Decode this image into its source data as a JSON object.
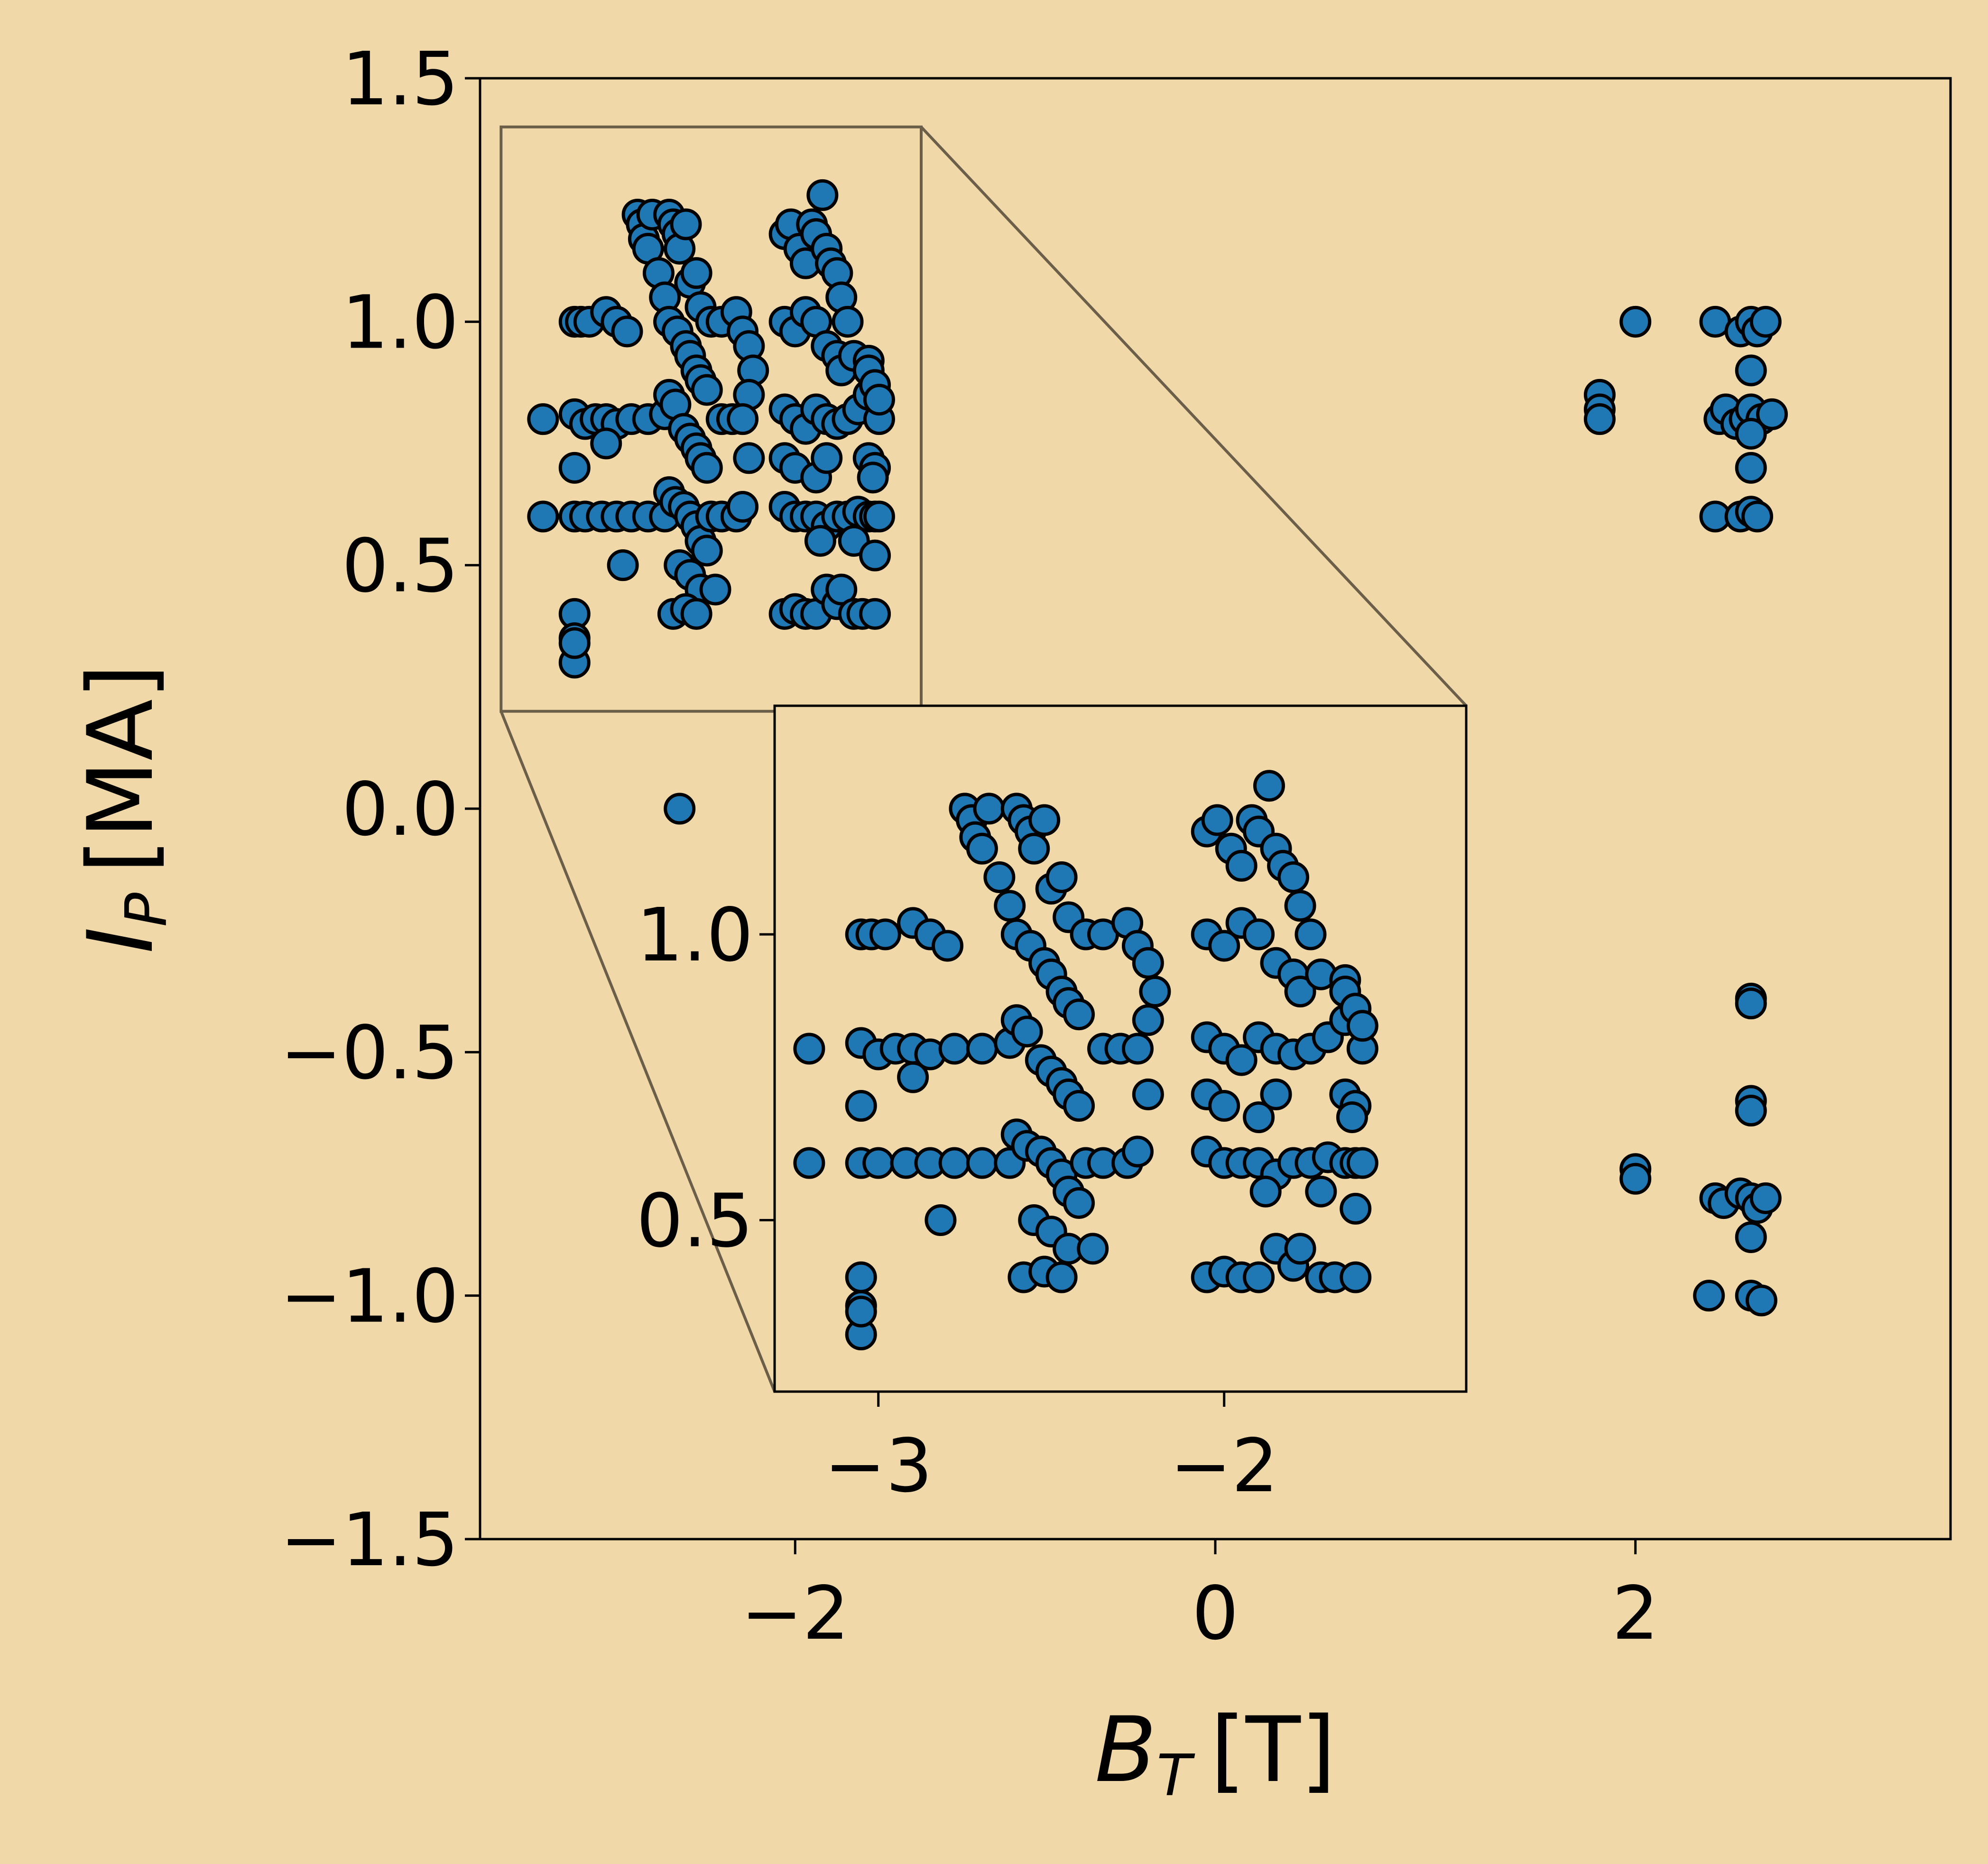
{
  "colors": {
    "background": "#f0d8a8",
    "marker_fill": "#1f77b4",
    "marker_edge": "#000000",
    "zoom_box": "#6b5f4a"
  },
  "chart_data": [
    {
      "type": "scatter",
      "role": "main",
      "xlabel": {
        "base": "B",
        "sub": "T",
        "unit": "[T]"
      },
      "ylabel": {
        "base": "I",
        "sub": "P",
        "unit": "[MA]"
      },
      "xlim": [
        -3.5,
        3.5
      ],
      "ylim": [
        -1.5,
        1.5
      ],
      "xticks": [
        -2,
        0,
        2
      ],
      "xtick_labels": [
        "−2",
        "0",
        "2"
      ],
      "yticks": [
        1.5,
        1.0,
        0.5,
        0.0,
        -0.5,
        -1.0,
        -1.5
      ],
      "ytick_labels": [
        "1.5",
        "1.0",
        "0.5",
        "0.0",
        "−0.5",
        "−1.0",
        "−1.5"
      ],
      "grid": false,
      "legend": "none",
      "zoom_region": {
        "x": [
          -3.4,
          -1.4
        ],
        "y": [
          0.2,
          1.4
        ]
      },
      "points": [
        [
          -3.2,
          0.8
        ],
        [
          -3.2,
          0.6
        ],
        [
          -3.05,
          1.0
        ],
        [
          -3.02,
          1.0
        ],
        [
          -2.98,
          1.0
        ],
        [
          -2.9,
          1.02
        ],
        [
          -2.85,
          1.0
        ],
        [
          -2.8,
          0.98
        ],
        [
          -3.05,
          0.81
        ],
        [
          -3.0,
          0.79
        ],
        [
          -2.95,
          0.8
        ],
        [
          -2.9,
          0.8
        ],
        [
          -2.85,
          0.79
        ],
        [
          -2.78,
          0.8
        ],
        [
          -2.7,
          0.8
        ],
        [
          -2.62,
          0.81
        ],
        [
          -3.05,
          0.6
        ],
        [
          -3.0,
          0.6
        ],
        [
          -2.92,
          0.6
        ],
        [
          -2.85,
          0.6
        ],
        [
          -2.78,
          0.6
        ],
        [
          -2.7,
          0.6
        ],
        [
          -2.62,
          0.6
        ],
        [
          -3.05,
          0.7
        ],
        [
          -2.9,
          0.75
        ],
        [
          -2.82,
          0.5
        ],
        [
          -3.05,
          0.4
        ],
        [
          -3.05,
          0.35
        ],
        [
          -3.05,
          0.3
        ],
        [
          -3.05,
          0.34
        ],
        [
          -2.75,
          1.22
        ],
        [
          -2.73,
          1.2
        ],
        [
          -2.72,
          1.17
        ],
        [
          -2.7,
          1.15
        ],
        [
          -2.68,
          1.22
        ],
        [
          -2.65,
          1.1
        ],
        [
          -2.62,
          1.05
        ],
        [
          -2.6,
          1.22
        ],
        [
          -2.58,
          1.2
        ],
        [
          -2.56,
          1.18
        ],
        [
          -2.55,
          1.15
        ],
        [
          -2.52,
          1.2
        ],
        [
          -2.5,
          1.08
        ],
        [
          -2.47,
          1.1
        ],
        [
          -2.45,
          1.03
        ],
        [
          -2.6,
          1.0
        ],
        [
          -2.56,
          0.98
        ],
        [
          -2.52,
          0.95
        ],
        [
          -2.5,
          0.93
        ],
        [
          -2.47,
          0.9
        ],
        [
          -2.45,
          0.88
        ],
        [
          -2.42,
          0.86
        ],
        [
          -2.6,
          0.85
        ],
        [
          -2.57,
          0.83
        ],
        [
          -2.53,
          0.78
        ],
        [
          -2.5,
          0.76
        ],
        [
          -2.47,
          0.74
        ],
        [
          -2.45,
          0.72
        ],
        [
          -2.42,
          0.7
        ],
        [
          -2.6,
          0.65
        ],
        [
          -2.57,
          0.63
        ],
        [
          -2.53,
          0.62
        ],
        [
          -2.5,
          0.6
        ],
        [
          -2.47,
          0.58
        ],
        [
          -2.45,
          0.55
        ],
        [
          -2.42,
          0.53
        ],
        [
          -2.55,
          0.5
        ],
        [
          -2.5,
          0.48
        ],
        [
          -2.45,
          0.45
        ],
        [
          -2.58,
          0.4
        ],
        [
          -2.52,
          0.41
        ],
        [
          -2.47,
          0.4
        ],
        [
          -2.38,
          0.45
        ],
        [
          -2.4,
          1.0
        ],
        [
          -2.35,
          1.0
        ],
        [
          -2.28,
          1.02
        ],
        [
          -2.25,
          0.98
        ],
        [
          -2.22,
          0.95
        ],
        [
          -2.2,
          0.9
        ],
        [
          -2.22,
          0.85
        ],
        [
          -2.35,
          0.8
        ],
        [
          -2.3,
          0.8
        ],
        [
          -2.25,
          0.8
        ],
        [
          -2.4,
          0.6
        ],
        [
          -2.35,
          0.6
        ],
        [
          -2.28,
          0.6
        ],
        [
          -2.25,
          0.62
        ],
        [
          -2.22,
          0.72
        ],
        [
          -2.05,
          1.18
        ],
        [
          -2.02,
          1.2
        ],
        [
          -1.98,
          1.15
        ],
        [
          -1.95,
          1.12
        ],
        [
          -1.92,
          1.2
        ],
        [
          -1.9,
          1.18
        ],
        [
          -1.87,
          1.26
        ],
        [
          -1.85,
          1.15
        ],
        [
          -1.83,
          1.12
        ],
        [
          -1.8,
          1.1
        ],
        [
          -1.78,
          1.05
        ],
        [
          -1.75,
          1.0
        ],
        [
          -2.05,
          1.0
        ],
        [
          -2.0,
          0.98
        ],
        [
          -1.95,
          1.02
        ],
        [
          -1.9,
          1.0
        ],
        [
          -1.85,
          0.95
        ],
        [
          -1.8,
          0.93
        ],
        [
          -1.78,
          0.9
        ],
        [
          -1.72,
          0.93
        ],
        [
          -1.65,
          0.92
        ],
        [
          -2.05,
          0.82
        ],
        [
          -2.0,
          0.8
        ],
        [
          -1.95,
          0.78
        ],
        [
          -1.9,
          0.82
        ],
        [
          -1.85,
          0.8
        ],
        [
          -1.8,
          0.79
        ],
        [
          -1.75,
          0.8
        ],
        [
          -1.7,
          0.82
        ],
        [
          -1.65,
          0.85
        ],
        [
          -1.6,
          0.8
        ],
        [
          -1.65,
          0.9
        ],
        [
          -1.62,
          0.87
        ],
        [
          -1.6,
          0.84
        ],
        [
          -2.05,
          0.72
        ],
        [
          -2.0,
          0.7
        ],
        [
          -1.9,
          0.68
        ],
        [
          -1.85,
          0.72
        ],
        [
          -1.65,
          0.72
        ],
        [
          -1.62,
          0.7
        ],
        [
          -1.63,
          0.68
        ],
        [
          -2.05,
          0.62
        ],
        [
          -2.0,
          0.6
        ],
        [
          -1.95,
          0.6
        ],
        [
          -1.9,
          0.6
        ],
        [
          -1.85,
          0.58
        ],
        [
          -1.8,
          0.6
        ],
        [
          -1.75,
          0.6
        ],
        [
          -1.7,
          0.61
        ],
        [
          -1.65,
          0.6
        ],
        [
          -1.62,
          0.6
        ],
        [
          -1.6,
          0.6
        ],
        [
          -1.88,
          0.55
        ],
        [
          -1.72,
          0.55
        ],
        [
          -1.62,
          0.52
        ],
        [
          -2.05,
          0.4
        ],
        [
          -2.0,
          0.41
        ],
        [
          -1.95,
          0.4
        ],
        [
          -1.9,
          0.4
        ],
        [
          -1.85,
          0.45
        ],
        [
          -1.8,
          0.42
        ],
        [
          -1.78,
          0.45
        ],
        [
          -1.72,
          0.4
        ],
        [
          -1.68,
          0.4
        ],
        [
          -1.62,
          0.4
        ],
        [
          -2.55,
          0.0
        ],
        [
          1.83,
          0.85
        ],
        [
          1.83,
          0.82
        ],
        [
          1.83,
          0.8
        ],
        [
          2.0,
          1.0
        ],
        [
          2.38,
          1.0
        ],
        [
          2.5,
          0.98
        ],
        [
          2.55,
          1.0
        ],
        [
          2.58,
          0.98
        ],
        [
          2.62,
          1.0
        ],
        [
          2.4,
          0.8
        ],
        [
          2.43,
          0.82
        ],
        [
          2.48,
          0.79
        ],
        [
          2.52,
          0.8
        ],
        [
          2.55,
          0.82
        ],
        [
          2.6,
          0.8
        ],
        [
          2.65,
          0.81
        ],
        [
          2.55,
          0.9
        ],
        [
          2.55,
          0.77
        ],
        [
          2.55,
          0.7
        ],
        [
          2.38,
          0.6
        ],
        [
          2.5,
          0.6
        ],
        [
          2.55,
          0.61
        ],
        [
          2.58,
          0.6
        ],
        [
          2.55,
          -0.39
        ],
        [
          2.55,
          -0.4
        ],
        [
          2.55,
          -0.6
        ],
        [
          2.55,
          -0.62
        ],
        [
          2.0,
          -0.74
        ],
        [
          2.0,
          -0.76
        ],
        [
          2.38,
          -0.8
        ],
        [
          2.42,
          -0.81
        ],
        [
          2.5,
          -0.79
        ],
        [
          2.55,
          -0.8
        ],
        [
          2.58,
          -0.82
        ],
        [
          2.62,
          -0.8
        ],
        [
          2.55,
          -0.88
        ],
        [
          2.35,
          -1.0
        ],
        [
          2.55,
          -1.0
        ],
        [
          2.6,
          -1.01
        ]
      ]
    },
    {
      "type": "scatter",
      "role": "inset",
      "xlim": [
        -3.3,
        -1.3
      ],
      "ylim": [
        0.2,
        1.4
      ],
      "xticks": [
        -3,
        -2
      ],
      "xtick_labels": [
        "−3",
        "−2"
      ],
      "yticks": [
        1.0,
        0.5
      ],
      "ytick_labels": [
        "1.0",
        "0.5"
      ]
    }
  ]
}
